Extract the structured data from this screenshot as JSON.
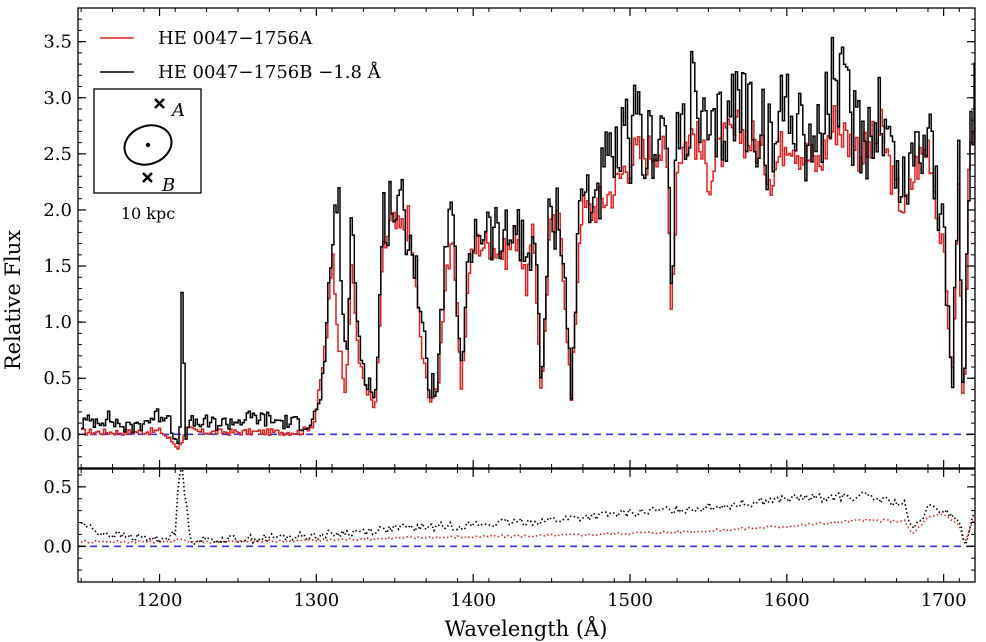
{
  "chart_data": {
    "type": "line",
    "xlabel": "Wavelength (Å)",
    "x_ticks": [
      "1200",
      "1300",
      "1400",
      "1500",
      "1600",
      "1700"
    ],
    "xlim": [
      1148,
      1720
    ],
    "panels": [
      {
        "name": "spectrum",
        "ylabel": "Relative Flux",
        "ylim": [
          -0.3,
          3.8
        ],
        "y_ticks": [
          "0.0",
          "0.5",
          "1.0",
          "1.5",
          "2.0",
          "2.5",
          "3.0",
          "3.5"
        ],
        "reference_line": {
          "y": 0.0,
          "style": "dashed",
          "color": "#3333dd"
        },
        "series": [
          {
            "name": "HE 0047−1756A",
            "color": "#dd2222",
            "style": "step",
            "x": [
              1150,
              1180,
              1200,
              1212,
              1216,
              1225,
              1260,
              1290,
              1298,
              1302,
              1306,
              1310,
              1313,
              1318,
              1322,
              1327,
              1332,
              1337,
              1342,
              1347,
              1352,
              1358,
              1363,
              1367,
              1372,
              1377,
              1382,
              1387,
              1392,
              1397,
              1402,
              1410,
              1420,
              1428,
              1433,
              1438,
              1443,
              1448,
              1455,
              1462,
              1468,
              1475,
              1483,
              1490,
              1497,
              1503,
              1510,
              1517,
              1523,
              1526,
              1530,
              1540,
              1550,
              1560,
              1570,
              1580,
              1590,
              1600,
              1610,
              1620,
              1630,
              1640,
              1650,
              1660,
              1668,
              1675,
              1682,
              1690,
              1700,
              1705,
              1709,
              1712,
              1716,
              1720
            ],
            "y": [
              0.02,
              0.02,
              0.03,
              -0.12,
              0.05,
              0.02,
              0.02,
              0.02,
              0.1,
              0.45,
              0.9,
              1.6,
              0.9,
              0.4,
              1.5,
              0.6,
              0.4,
              0.2,
              1.6,
              1.9,
              1.8,
              1.9,
              1.3,
              0.7,
              0.3,
              0.4,
              1.5,
              1.6,
              0.4,
              1.5,
              1.7,
              1.7,
              1.6,
              1.8,
              1.3,
              1.8,
              0.3,
              1.8,
              1.9,
              0.3,
              2.0,
              2.0,
              2.1,
              2.2,
              2.4,
              2.5,
              2.5,
              2.6,
              2.4,
              1.1,
              2.5,
              2.7,
              2.3,
              2.6,
              2.7,
              2.6,
              2.3,
              2.7,
              2.5,
              2.4,
              2.8,
              2.6,
              2.5,
              2.7,
              2.2,
              2.0,
              2.4,
              2.6,
              1.5,
              0.5,
              2.2,
              0.05,
              2.5,
              2.6
            ]
          },
          {
            "name": "HE 0047−1756B −1.8 Å",
            "color": "#000000",
            "style": "step",
            "x": [
              1150,
              1165,
              1180,
              1195,
              1205,
              1212,
              1214,
              1216,
              1220,
              1240,
              1260,
              1285,
              1295,
              1300,
              1305,
              1310,
              1313,
              1318,
              1322,
              1327,
              1332,
              1337,
              1342,
              1347,
              1352,
              1358,
              1363,
              1367,
              1372,
              1377,
              1382,
              1387,
              1392,
              1397,
              1402,
              1410,
              1420,
              1428,
              1433,
              1438,
              1443,
              1448,
              1455,
              1462,
              1468,
              1475,
              1483,
              1490,
              1497,
              1503,
              1510,
              1517,
              1523,
              1526,
              1530,
              1540,
              1550,
              1560,
              1570,
              1580,
              1590,
              1600,
              1610,
              1620,
              1630,
              1640,
              1650,
              1660,
              1668,
              1675,
              1682,
              1690,
              1700,
              1705,
              1709,
              1712,
              1716,
              1720
            ],
            "y": [
              0.1,
              0.15,
              0.05,
              0.15,
              0.2,
              -0.2,
              1.3,
              0.0,
              0.1,
              0.1,
              0.15,
              0.1,
              0.1,
              0.2,
              0.6,
              1.8,
              2.2,
              0.6,
              1.8,
              0.8,
              0.5,
              0.3,
              1.9,
              2.1,
              2.0,
              1.9,
              1.5,
              0.9,
              0.4,
              0.5,
              1.7,
              1.8,
              0.5,
              1.6,
              1.9,
              1.8,
              1.7,
              1.9,
              1.5,
              1.9,
              0.4,
              1.9,
              2.0,
              0.4,
              2.2,
              2.1,
              2.3,
              2.4,
              2.6,
              2.7,
              2.5,
              2.8,
              2.6,
              1.3,
              2.7,
              3.0,
              2.5,
              2.8,
              3.0,
              2.8,
              2.5,
              3.1,
              2.7,
              2.6,
              3.2,
              2.8,
              2.7,
              2.9,
              2.4,
              2.2,
              2.6,
              2.8,
              1.6,
              0.4,
              2.6,
              0.1,
              2.8,
              3.0
            ]
          }
        ]
      },
      {
        "name": "error",
        "ylim": [
          -0.3,
          0.65
        ],
        "y_ticks": [
          "0.0",
          "0.5"
        ],
        "reference_line": {
          "y": 0.0,
          "style": "dashed",
          "color": "#3333dd"
        },
        "series": [
          {
            "name": "error A",
            "color": "#dd2222",
            "style": "dotted",
            "x": [
              1150,
              1200,
              1210,
              1214,
              1218,
              1250,
              1300,
              1350,
              1400,
              1450,
              1500,
              1550,
              1600,
              1650,
              1675,
              1680,
              1690,
              1700,
              1710,
              1713,
              1720
            ],
            "y": [
              0.04,
              0.04,
              0.04,
              0.07,
              0.04,
              0.04,
              0.05,
              0.07,
              0.08,
              0.09,
              0.11,
              0.13,
              0.17,
              0.22,
              0.21,
              0.1,
              0.24,
              0.27,
              0.18,
              0.02,
              0.25
            ]
          },
          {
            "name": "error B",
            "color": "#000000",
            "style": "dotted",
            "x": [
              1150,
              1160,
              1180,
              1200,
              1210,
              1212,
              1214,
              1217,
              1220,
              1250,
              1300,
              1350,
              1400,
              1450,
              1500,
              1550,
              1600,
              1650,
              1675,
              1680,
              1690,
              1700,
              1710,
              1713,
              1720
            ],
            "y": [
              0.2,
              0.12,
              0.08,
              0.06,
              0.1,
              0.55,
              0.7,
              0.35,
              0.05,
              0.06,
              0.09,
              0.15,
              0.18,
              0.22,
              0.28,
              0.33,
              0.4,
              0.42,
              0.35,
              0.12,
              0.32,
              0.3,
              0.22,
              0.0,
              0.28
            ]
          }
        ]
      }
    ]
  },
  "legend": [
    {
      "label": "HE 0047−1756A",
      "color": "#dd2222"
    },
    {
      "label": "HE 0047−1756B −1.8 Å",
      "color": "#000000"
    }
  ],
  "inset": {
    "label_a": "A",
    "label_b": "B",
    "scale": "10 kpc"
  }
}
